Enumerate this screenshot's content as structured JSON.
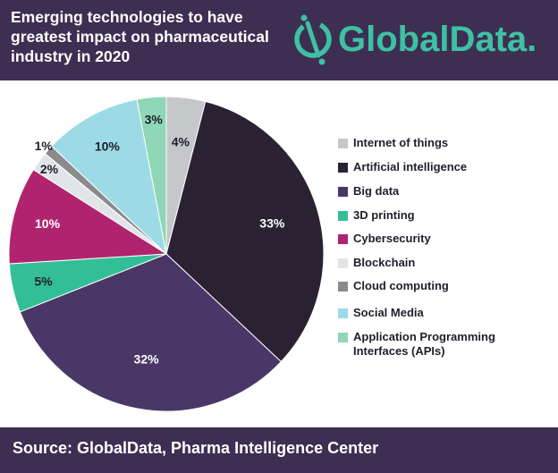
{
  "header": {
    "title_lines": [
      "Emerging technologies to have",
      "greatest impact on pharmaceutical",
      "industry in 2020"
    ],
    "logo_text": "GlobalData."
  },
  "chart_data": {
    "type": "pie",
    "title": "Emerging technologies to have greatest impact on pharmaceutical industry in 2020",
    "slices": [
      {
        "label": "Internet of things",
        "value": 4,
        "display": "4%",
        "color": "#c6c7cb"
      },
      {
        "label": "Artificial intelligence",
        "value": 33,
        "display": "33%",
        "color": "#2a2233"
      },
      {
        "label": "Big data",
        "value": 32,
        "display": "32%",
        "color": "#4a3768"
      },
      {
        "label": "3D printing",
        "value": 5,
        "display": "5%",
        "color": "#33bf95"
      },
      {
        "label": "Cybersecurity",
        "value": 10,
        "display": "10%",
        "color": "#b0246f"
      },
      {
        "label": "Blockchain",
        "value": 2,
        "display": "2%",
        "color": "#e2e5e8"
      },
      {
        "label": "Cloud computing",
        "value": 1,
        "display": "1%",
        "color": "#8b8b8e"
      },
      {
        "label": "Social Media",
        "value": 10,
        "display": "10%",
        "color": "#9cdbe6"
      },
      {
        "label": "Application Programming Interfaces (APIs)",
        "value": 3,
        "display": "3%",
        "color": "#8fd7b6"
      }
    ],
    "legend_position": "right"
  },
  "legend": {
    "items": [
      {
        "lines": [
          "Internet of things"
        ]
      },
      {
        "lines": [
          "Artificial intelligence"
        ]
      },
      {
        "lines": [
          "Big data"
        ]
      },
      {
        "lines": [
          "3D printing"
        ]
      },
      {
        "lines": [
          "Cybersecurity"
        ]
      },
      {
        "lines": [
          "Blockchain"
        ]
      },
      {
        "lines": [
          "Cloud computing"
        ]
      },
      {
        "lines": [
          "Social Media"
        ]
      },
      {
        "lines": [
          "Application Programming",
          "Interfaces (APIs)"
        ]
      }
    ]
  },
  "footer": {
    "source": "Source:  GlobalData, Pharma Intelligence Center"
  }
}
